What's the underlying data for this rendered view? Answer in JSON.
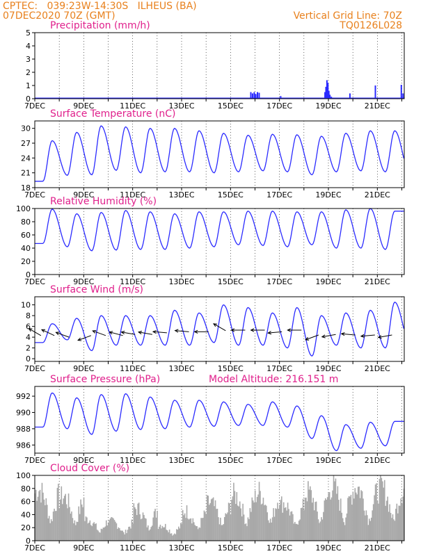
{
  "header": {
    "line1_left": "CPTEC:   039:23W-14:30S   ILHEUS (BA)",
    "line2_left": "07DEC2020 70Z (GMT)",
    "line1_right": "Vertical Grid Line: 70Z",
    "line2_right": "TQ0126L028"
  },
  "colors": {
    "header": "#e8801c",
    "title": "#e0208c",
    "series": "#2a2aff",
    "cloud": "#a9a9a9",
    "frame": "#000000",
    "grid": "#000000"
  },
  "x_tick_labels": [
    "7DEC",
    "9DEC",
    "11DEC",
    "13DEC",
    "15DEC",
    "17DEC",
    "19DEC",
    "21DEC"
  ],
  "chart_data": [
    {
      "id": "precip",
      "type": "bar",
      "title": "Precipitation (mm/h)",
      "ylim": [
        0,
        5
      ],
      "yticks": [
        0,
        1,
        2,
        3,
        4,
        5
      ],
      "xlim": [
        7,
        22.1
      ],
      "x": [
        15.83,
        15.9,
        15.97,
        16.03,
        16.1,
        16.17,
        17.05,
        18.86,
        18.9,
        18.94,
        18.98,
        19.02,
        19.06,
        19.12,
        19.88,
        20.92,
        21.98,
        22.05
      ],
      "values": [
        0.5,
        0.4,
        0.5,
        0.35,
        0.5,
        0.45,
        0.2,
        0.5,
        0.9,
        1.4,
        1.2,
        0.6,
        0.3,
        0.15,
        0.4,
        1.0,
        1.05,
        0.4
      ]
    },
    {
      "id": "temp",
      "type": "line",
      "title": "Surface Temperature (nC)",
      "ylim": [
        18,
        31.5
      ],
      "yticks": [
        18,
        21,
        24,
        27,
        30
      ],
      "xlim": [
        7,
        22.1
      ],
      "daily_min": [
        19.3,
        20.5,
        20.6,
        21.5,
        21.0,
        21.2,
        21.2,
        21.0,
        21.2,
        21.4,
        21.2,
        20.6,
        21.2,
        21.4,
        21.2,
        21.0
      ],
      "daily_max": [
        27.5,
        29.2,
        30.5,
        30.3,
        30.0,
        30.0,
        29.5,
        29.0,
        28.6,
        28.8,
        28.7,
        28.4,
        29.0,
        29.5,
        29.5,
        29.5
      ]
    },
    {
      "id": "rh",
      "type": "line",
      "title": "Relative Humidity (%)",
      "ylim": [
        0,
        100
      ],
      "yticks": [
        0,
        20,
        40,
        60,
        80,
        100
      ],
      "xlim": [
        7,
        22.1
      ],
      "daily_min": [
        47,
        42,
        36,
        37,
        38,
        38,
        40,
        42,
        45,
        44,
        42,
        45,
        40,
        40,
        38
      ],
      "daily_max": [
        99,
        92,
        94,
        97,
        95,
        92,
        95,
        95,
        96,
        96,
        95,
        95,
        98,
        100,
        96
      ]
    },
    {
      "id": "wind",
      "type": "line",
      "title": "Surface Wind (m/s)",
      "ylim": [
        -0.5,
        11.5
      ],
      "yticks": [
        0,
        2,
        4,
        6,
        8,
        10
      ],
      "xlim": [
        7,
        22.1
      ],
      "daily_min": [
        3.0,
        3.5,
        1.5,
        2.5,
        2.5,
        2.5,
        2.5,
        3.0,
        2.5,
        2.5,
        2.0,
        0.5,
        2.5,
        2.0,
        2.0,
        3.0
      ],
      "daily_max": [
        6.5,
        7.5,
        8.0,
        8.0,
        8.0,
        9.0,
        8.5,
        10.0,
        9.5,
        8.5,
        9.5,
        8.0,
        8.5,
        9.0,
        10.5,
        6.0
      ],
      "arrows": [
        [
          7.25,
          4.3,
          150
        ],
        [
          7.8,
          4.3,
          155
        ],
        [
          8.4,
          4.0,
          160
        ],
        [
          9.3,
          4.3,
          200
        ],
        [
          9.9,
          4.3,
          160
        ],
        [
          10.6,
          4.3,
          165
        ],
        [
          11.1,
          4.5,
          170
        ],
        [
          11.8,
          4.5,
          170
        ],
        [
          12.4,
          4.8,
          175
        ],
        [
          13.3,
          5.0,
          175
        ],
        [
          14.1,
          5.0,
          180
        ],
        [
          14.8,
          5.2,
          150
        ],
        [
          15.6,
          5.3,
          180
        ],
        [
          16.4,
          5.3,
          180
        ],
        [
          17.1,
          5.0,
          185
        ],
        [
          17.9,
          5.3,
          180
        ],
        [
          18.6,
          4.4,
          200
        ],
        [
          19.3,
          4.5,
          190
        ],
        [
          20.1,
          4.4,
          175
        ],
        [
          20.9,
          4.4,
          185
        ],
        [
          21.6,
          4.4,
          190
        ]
      ]
    },
    {
      "id": "pres",
      "type": "line",
      "title": "Surface Pressure (hPa)",
      "annotation": "Model Altitude: 216.151 m",
      "ylim": [
        985.0,
        993.2
      ],
      "yticks": [
        986,
        988,
        990,
        992
      ],
      "xlim": [
        7,
        22.1
      ],
      "daily_min": [
        988.2,
        988.0,
        987.3,
        987.7,
        987.9,
        988.0,
        988.2,
        988.3,
        988.4,
        988.4,
        988.2,
        986.8,
        985.3,
        985.6,
        985.9
      ],
      "daily_max": [
        992.4,
        991.8,
        992.2,
        992.3,
        991.9,
        991.5,
        991.5,
        991.3,
        991.0,
        991.3,
        990.8,
        989.6,
        988.5,
        988.8,
        988.9
      ]
    },
    {
      "id": "cloud",
      "type": "area",
      "title": "Cloud Cover (%)",
      "ylim": [
        0,
        100
      ],
      "yticks": [
        0,
        20,
        40,
        60,
        80,
        100
      ],
      "xlim": [
        7,
        22.1
      ],
      "daily_peak": [
        95,
        82,
        40,
        35,
        60,
        30,
        55,
        70,
        85,
        90,
        70,
        90,
        100,
        100,
        98
      ]
    }
  ]
}
